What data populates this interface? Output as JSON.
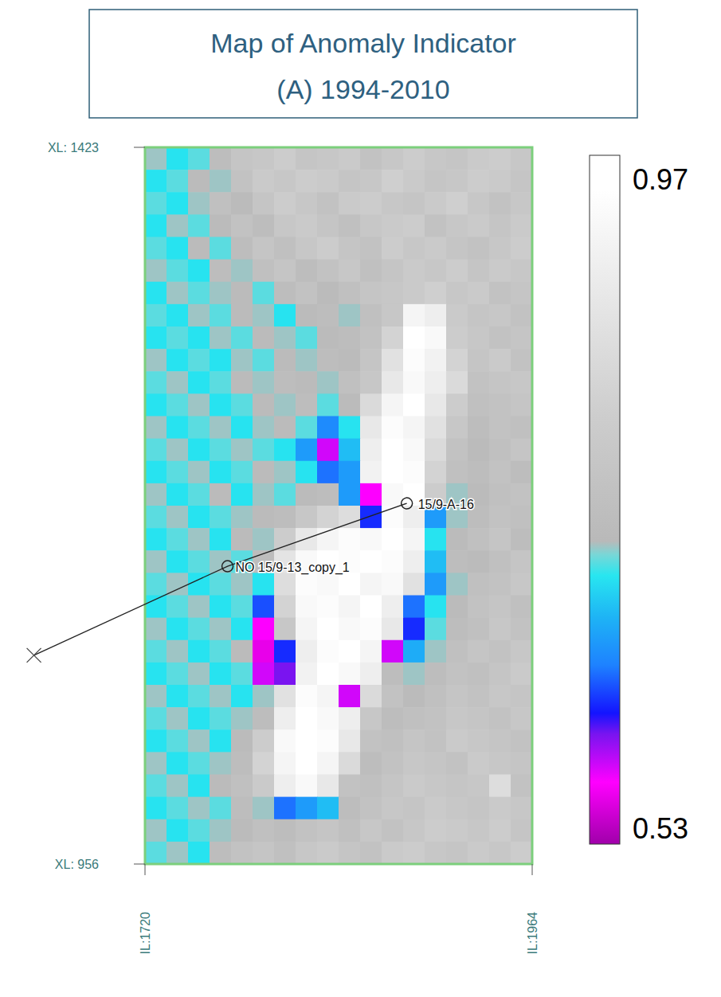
{
  "chart_data": {
    "type": "heatmap",
    "title": "Map of Anomaly Indicator",
    "subtitle": "(A) 1994-2010",
    "xlim": [
      1720,
      1964
    ],
    "ylim": [
      956,
      1423
    ],
    "xticks": [
      {
        "value": 1720,
        "label": "IL:1720"
      },
      {
        "value": 1964,
        "label": "IL:1964"
      }
    ],
    "yticks": [
      {
        "value": 1423,
        "label": "XL: 1423"
      },
      {
        "value": 956,
        "label": "XL: 956"
      }
    ],
    "colorbar_lim": [
      0.53,
      0.97
    ],
    "colorbar_ticks": [
      0.53,
      0.97
    ],
    "wells": [
      {
        "label": "15/9-A-16",
        "x": 1885,
        "y": 1191
      },
      {
        "label": "NO 15/9-13_copy_1",
        "x": 1772,
        "y": 1150
      }
    ],
    "well_path": {
      "x": [
        1650,
        1772,
        1885
      ],
      "y": [
        1092,
        1150,
        1191
      ]
    },
    "z": [
      [
        0.72,
        0.7,
        0.71,
        0.74,
        0.77,
        0.78,
        0.8,
        0.77,
        0.78,
        0.79,
        0.76,
        0.78,
        0.8,
        0.78,
        0.77,
        0.79,
        0.8,
        0.78
      ],
      [
        0.7,
        0.71,
        0.73,
        0.72,
        0.76,
        0.79,
        0.78,
        0.8,
        0.79,
        0.77,
        0.78,
        0.81,
        0.79,
        0.77,
        0.78,
        0.8,
        0.79,
        0.77
      ],
      [
        0.71,
        0.7,
        0.72,
        0.75,
        0.73,
        0.77,
        0.8,
        0.78,
        0.76,
        0.79,
        0.8,
        0.78,
        0.77,
        0.79,
        0.81,
        0.78,
        0.76,
        0.78
      ],
      [
        0.7,
        0.72,
        0.71,
        0.73,
        0.76,
        0.74,
        0.78,
        0.79,
        0.77,
        0.75,
        0.78,
        0.79,
        0.8,
        0.76,
        0.78,
        0.79,
        0.77,
        0.79
      ],
      [
        0.71,
        0.7,
        0.73,
        0.71,
        0.74,
        0.77,
        0.75,
        0.78,
        0.8,
        0.77,
        0.76,
        0.8,
        0.78,
        0.79,
        0.77,
        0.76,
        0.78,
        0.8
      ],
      [
        0.72,
        0.71,
        0.7,
        0.74,
        0.72,
        0.75,
        0.77,
        0.74,
        0.76,
        0.78,
        0.75,
        0.77,
        0.79,
        0.78,
        0.8,
        0.77,
        0.79,
        0.78
      ],
      [
        0.7,
        0.72,
        0.71,
        0.72,
        0.73,
        0.71,
        0.74,
        0.76,
        0.73,
        0.75,
        0.77,
        0.78,
        0.79,
        0.81,
        0.78,
        0.79,
        0.76,
        0.77
      ],
      [
        0.71,
        0.7,
        0.72,
        0.71,
        0.73,
        0.72,
        0.7,
        0.73,
        0.74,
        0.72,
        0.75,
        0.78,
        0.92,
        0.9,
        0.79,
        0.77,
        0.78,
        0.76
      ],
      [
        0.7,
        0.71,
        0.7,
        0.72,
        0.71,
        0.73,
        0.72,
        0.71,
        0.73,
        0.74,
        0.76,
        0.82,
        0.95,
        0.93,
        0.8,
        0.78,
        0.76,
        0.77
      ],
      [
        0.72,
        0.7,
        0.71,
        0.7,
        0.72,
        0.71,
        0.73,
        0.72,
        0.74,
        0.73,
        0.77,
        0.86,
        0.94,
        0.91,
        0.82,
        0.77,
        0.79,
        0.76
      ],
      [
        0.71,
        0.72,
        0.7,
        0.71,
        0.73,
        0.72,
        0.74,
        0.73,
        0.72,
        0.75,
        0.78,
        0.88,
        0.93,
        0.9,
        0.84,
        0.76,
        0.77,
        0.78
      ],
      [
        0.7,
        0.71,
        0.72,
        0.7,
        0.71,
        0.73,
        0.72,
        0.74,
        0.71,
        0.73,
        0.84,
        0.92,
        0.95,
        0.88,
        0.8,
        0.75,
        0.76,
        0.77
      ],
      [
        0.72,
        0.7,
        0.71,
        0.72,
        0.7,
        0.72,
        0.73,
        0.71,
        0.65,
        0.7,
        0.88,
        0.94,
        0.92,
        0.86,
        0.78,
        0.74,
        0.76,
        0.75
      ],
      [
        0.71,
        0.72,
        0.7,
        0.71,
        0.72,
        0.71,
        0.7,
        0.66,
        0.58,
        0.68,
        0.9,
        0.95,
        0.93,
        0.84,
        0.76,
        0.73,
        0.75,
        0.77
      ],
      [
        0.7,
        0.71,
        0.72,
        0.7,
        0.71,
        0.73,
        0.72,
        0.7,
        0.64,
        0.66,
        0.91,
        0.96,
        0.94,
        0.82,
        0.75,
        0.74,
        0.76,
        0.74
      ],
      [
        0.72,
        0.7,
        0.71,
        0.73,
        0.7,
        0.72,
        0.71,
        0.73,
        0.74,
        0.66,
        0.57,
        0.93,
        0.95,
        0.8,
        0.72,
        0.73,
        0.75,
        0.76
      ],
      [
        0.71,
        0.72,
        0.7,
        0.71,
        0.72,
        0.73,
        0.74,
        0.78,
        0.82,
        0.85,
        0.62,
        0.94,
        0.9,
        0.66,
        0.72,
        0.74,
        0.76,
        0.75
      ],
      [
        0.7,
        0.71,
        0.72,
        0.7,
        0.73,
        0.72,
        0.8,
        0.88,
        0.92,
        0.94,
        0.93,
        0.95,
        0.92,
        0.7,
        0.73,
        0.75,
        0.77,
        0.74
      ],
      [
        0.72,
        0.7,
        0.71,
        0.72,
        0.71,
        0.74,
        0.87,
        0.93,
        0.95,
        0.94,
        0.96,
        0.94,
        0.9,
        0.68,
        0.74,
        0.73,
        0.75,
        0.77
      ],
      [
        0.71,
        0.72,
        0.7,
        0.71,
        0.72,
        0.7,
        0.85,
        0.94,
        0.93,
        0.95,
        0.92,
        0.93,
        0.86,
        0.66,
        0.72,
        0.75,
        0.76,
        0.78
      ],
      [
        0.7,
        0.71,
        0.72,
        0.7,
        0.71,
        0.63,
        0.82,
        0.93,
        0.94,
        0.92,
        0.95,
        0.9,
        0.64,
        0.7,
        0.73,
        0.76,
        0.77,
        0.75
      ],
      [
        0.72,
        0.7,
        0.71,
        0.72,
        0.7,
        0.57,
        0.78,
        0.92,
        0.95,
        0.93,
        0.94,
        0.88,
        0.62,
        0.71,
        0.74,
        0.75,
        0.78,
        0.76
      ],
      [
        0.71,
        0.72,
        0.7,
        0.71,
        0.73,
        0.56,
        0.62,
        0.9,
        0.94,
        0.96,
        0.92,
        0.58,
        0.67,
        0.72,
        0.75,
        0.77,
        0.76,
        0.78
      ],
      [
        0.7,
        0.71,
        0.72,
        0.7,
        0.71,
        0.58,
        0.6,
        0.91,
        0.95,
        0.93,
        0.9,
        0.74,
        0.72,
        0.74,
        0.76,
        0.75,
        0.77,
        0.79
      ],
      [
        0.72,
        0.7,
        0.71,
        0.72,
        0.7,
        0.72,
        0.86,
        0.94,
        0.92,
        0.58,
        0.84,
        0.76,
        0.73,
        0.75,
        0.77,
        0.76,
        0.78,
        0.77
      ],
      [
        0.71,
        0.72,
        0.7,
        0.71,
        0.72,
        0.74,
        0.9,
        0.95,
        0.93,
        0.9,
        0.78,
        0.74,
        0.75,
        0.76,
        0.78,
        0.77,
        0.76,
        0.78
      ],
      [
        0.7,
        0.71,
        0.72,
        0.7,
        0.73,
        0.8,
        0.93,
        0.96,
        0.94,
        0.88,
        0.76,
        0.75,
        0.77,
        0.76,
        0.79,
        0.78,
        0.77,
        0.76
      ],
      [
        0.72,
        0.7,
        0.71,
        0.72,
        0.74,
        0.82,
        0.92,
        0.95,
        0.92,
        0.84,
        0.74,
        0.76,
        0.78,
        0.77,
        0.76,
        0.79,
        0.78,
        0.77
      ],
      [
        0.71,
        0.72,
        0.7,
        0.73,
        0.75,
        0.79,
        0.9,
        0.93,
        0.88,
        0.76,
        0.75,
        0.77,
        0.79,
        0.78,
        0.77,
        0.78,
        0.85,
        0.76
      ],
      [
        0.7,
        0.71,
        0.72,
        0.71,
        0.74,
        0.72,
        0.64,
        0.66,
        0.68,
        0.74,
        0.76,
        0.78,
        0.77,
        0.79,
        0.78,
        0.77,
        0.79,
        0.78
      ],
      [
        0.72,
        0.7,
        0.71,
        0.72,
        0.73,
        0.75,
        0.74,
        0.76,
        0.77,
        0.75,
        0.78,
        0.76,
        0.78,
        0.8,
        0.79,
        0.78,
        0.8,
        0.77
      ],
      [
        0.71,
        0.72,
        0.7,
        0.74,
        0.76,
        0.77,
        0.75,
        0.78,
        0.79,
        0.77,
        0.76,
        0.79,
        0.8,
        0.78,
        0.77,
        0.79,
        0.78,
        0.8
      ]
    ]
  }
}
